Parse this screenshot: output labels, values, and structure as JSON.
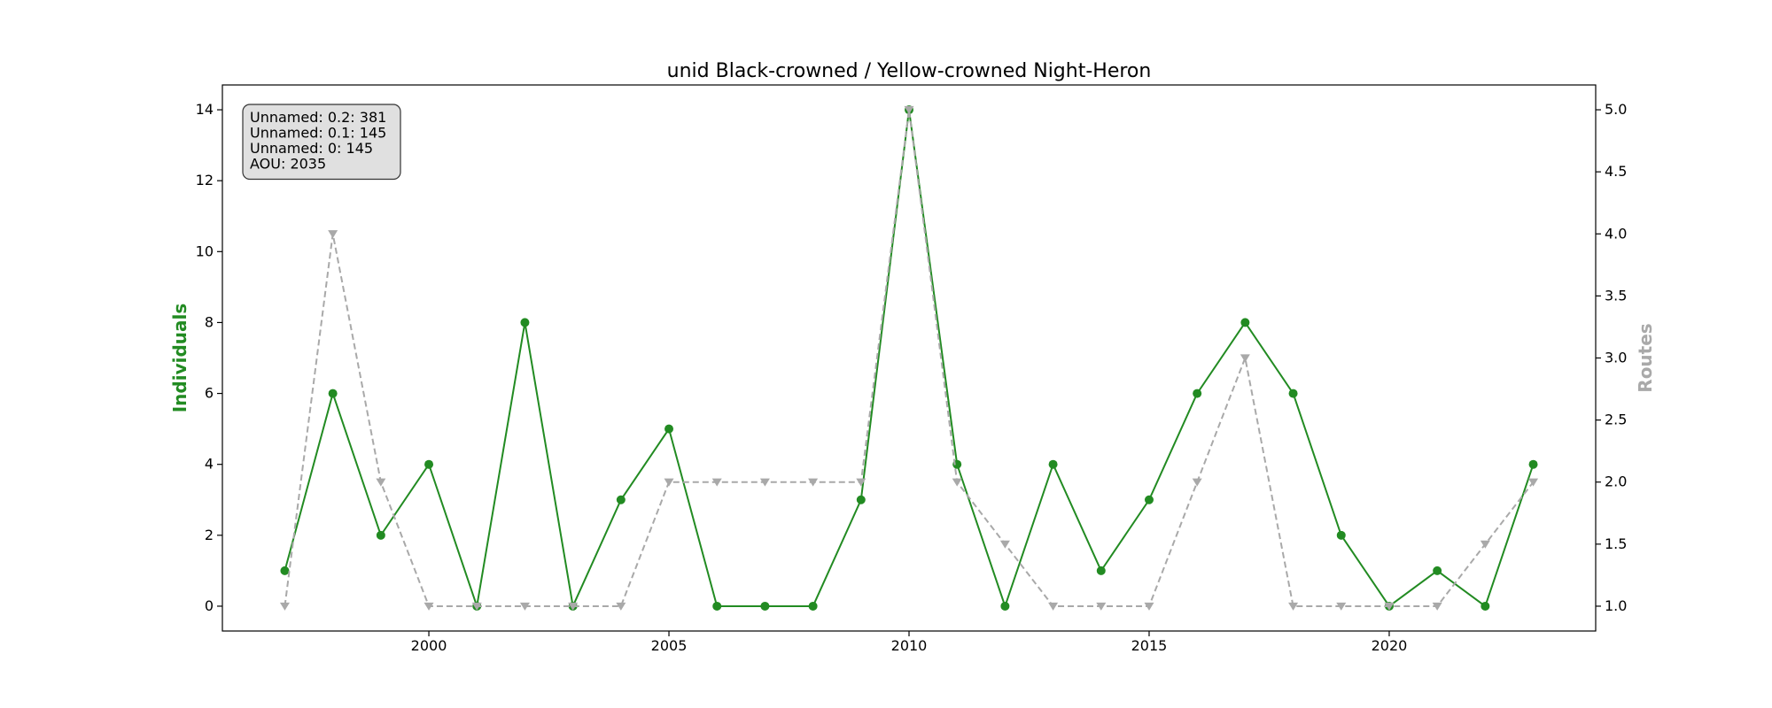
{
  "chart_data": {
    "type": "line",
    "title": "unid Black-crowned / Yellow-crowned Night-Heron",
    "xlabel": "",
    "ylabel_left": "Individuals",
    "ylabel_right": "Routes",
    "x": [
      1997,
      1998,
      1999,
      2000,
      2001,
      2002,
      2003,
      2004,
      2005,
      2006,
      2007,
      2008,
      2009,
      2010,
      2011,
      2012,
      2013,
      2014,
      2015,
      2016,
      2017,
      2018,
      2019,
      2020,
      2021,
      2022,
      2023
    ],
    "xlim": [
      1995.7,
      2024.3
    ],
    "x_ticks": [
      2000,
      2005,
      2010,
      2015,
      2020
    ],
    "ylim_left": [
      -0.7,
      14.7
    ],
    "y_ticks_left": [
      0,
      2,
      4,
      6,
      8,
      10,
      12,
      14
    ],
    "ylim_right": [
      0.8,
      5.2
    ],
    "y_ticks_right": [
      "1.0",
      "1.5",
      "2.0",
      "2.5",
      "3.0",
      "3.5",
      "4.0",
      "4.5",
      "5.0"
    ],
    "grid": false,
    "series": [
      {
        "name": "Individuals",
        "axis": "left",
        "color": "#228B22",
        "marker": "circle",
        "linestyle": "solid",
        "values": [
          1,
          6,
          2,
          4,
          0,
          8,
          0,
          3,
          5,
          0,
          0,
          0,
          3,
          14,
          4,
          0,
          4,
          1,
          3,
          6,
          8,
          6,
          2,
          0,
          1,
          0,
          4
        ]
      },
      {
        "name": "Routes",
        "axis": "right",
        "color": "#A9A9A9",
        "marker": "triangle-down",
        "linestyle": "dashed",
        "values": [
          1,
          4,
          2,
          1,
          1,
          1,
          1,
          1,
          2,
          2,
          2,
          2,
          2,
          5,
          2,
          1.5,
          1,
          1,
          1,
          2,
          3,
          1,
          1,
          1,
          1,
          1.5,
          2
        ]
      }
    ],
    "info_box": {
      "lines": [
        "Unnamed: 0.2: 381",
        "Unnamed: 0.1: 145",
        "Unnamed: 0: 145",
        "AOU: 2035"
      ],
      "placement": "top-left"
    }
  }
}
